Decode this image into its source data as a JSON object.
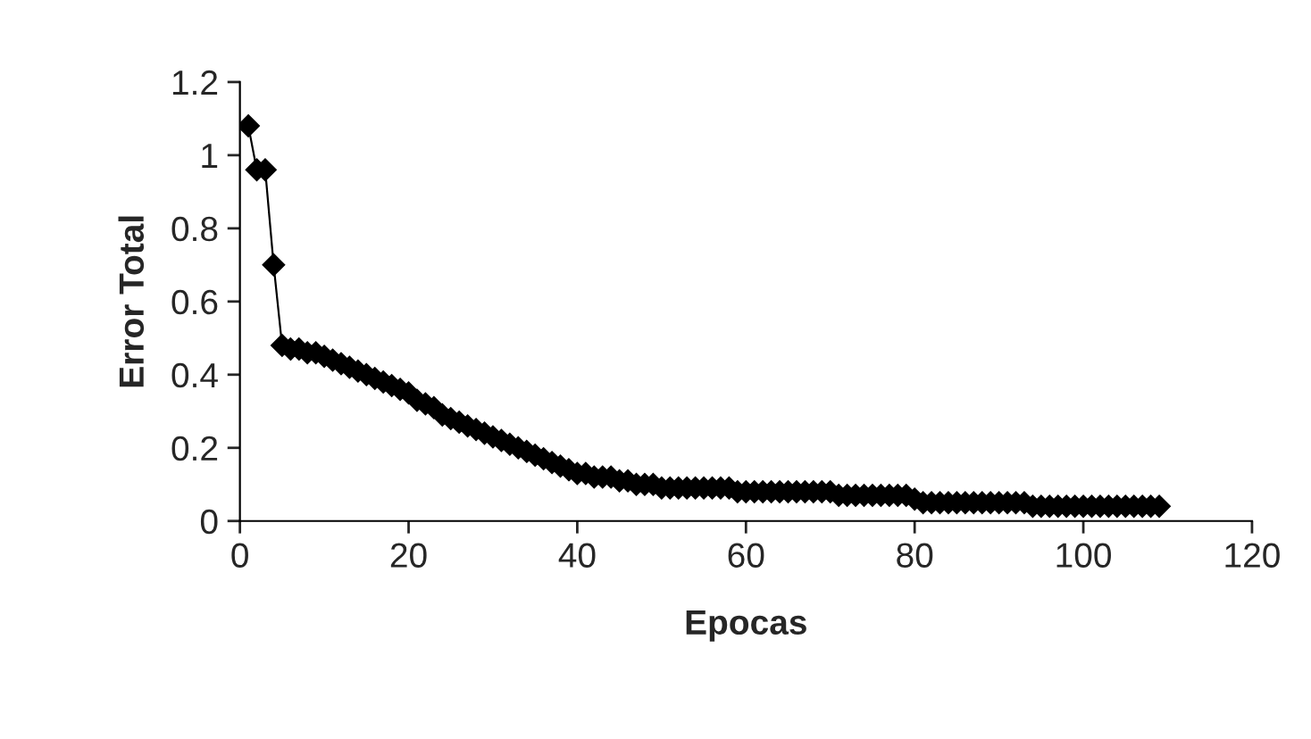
{
  "chart_data": {
    "type": "line",
    "xlabel": "Epocas",
    "ylabel": "Error Total",
    "x": [
      1,
      2,
      3,
      4,
      5,
      6,
      7,
      8,
      9,
      10,
      11,
      12,
      13,
      14,
      15,
      16,
      17,
      18,
      19,
      20,
      21,
      22,
      23,
      24,
      25,
      26,
      27,
      28,
      29,
      30,
      31,
      32,
      33,
      34,
      35,
      36,
      37,
      38,
      39,
      40,
      41,
      42,
      43,
      44,
      45,
      46,
      47,
      48,
      49,
      50,
      51,
      52,
      53,
      54,
      55,
      56,
      57,
      58,
      59,
      60,
      61,
      62,
      63,
      64,
      65,
      66,
      67,
      68,
      69,
      70,
      71,
      72,
      73,
      74,
      75,
      76,
      77,
      78,
      79,
      80,
      81,
      82,
      83,
      84,
      85,
      86,
      87,
      88,
      89,
      90,
      91,
      92,
      93,
      94,
      95,
      96,
      97,
      98,
      99,
      100,
      101,
      102,
      103,
      104,
      105,
      106,
      107,
      108,
      109
    ],
    "series": [
      {
        "color": "#000000",
        "values": [
          1.08,
          0.96,
          0.96,
          0.7,
          0.48,
          0.47,
          0.47,
          0.46,
          0.46,
          0.45,
          0.44,
          0.43,
          0.42,
          0.41,
          0.4,
          0.39,
          0.38,
          0.37,
          0.36,
          0.35,
          0.33,
          0.32,
          0.31,
          0.29,
          0.28,
          0.27,
          0.26,
          0.25,
          0.24,
          0.23,
          0.22,
          0.21,
          0.2,
          0.19,
          0.18,
          0.17,
          0.16,
          0.15,
          0.14,
          0.13,
          0.13,
          0.12,
          0.12,
          0.12,
          0.11,
          0.11,
          0.1,
          0.1,
          0.1,
          0.09,
          0.09,
          0.09,
          0.09,
          0.09,
          0.09,
          0.09,
          0.09,
          0.09,
          0.08,
          0.08,
          0.08,
          0.08,
          0.08,
          0.08,
          0.08,
          0.08,
          0.08,
          0.08,
          0.08,
          0.08,
          0.07,
          0.07,
          0.07,
          0.07,
          0.07,
          0.07,
          0.07,
          0.07,
          0.07,
          0.06,
          0.05,
          0.05,
          0.05,
          0.05,
          0.05,
          0.05,
          0.05,
          0.05,
          0.05,
          0.05,
          0.05,
          0.05,
          0.05,
          0.04,
          0.04,
          0.04,
          0.04,
          0.04,
          0.04,
          0.04,
          0.04,
          0.04,
          0.04,
          0.04,
          0.04,
          0.04,
          0.04,
          0.04,
          0.04
        ]
      }
    ],
    "xlim": [
      0,
      120
    ],
    "xticks": [
      0,
      20,
      40,
      60,
      80,
      100,
      120
    ],
    "ylim": [
      0,
      1.2
    ],
    "yticks": [
      {
        "value": 0,
        "label": "0"
      },
      0.2,
      0.4,
      0.6,
      0.8,
      {
        "value": 1,
        "label": "1"
      },
      1.2
    ],
    "marker": "diamond",
    "line_style": "solid",
    "grid": false,
    "legend": false
  }
}
